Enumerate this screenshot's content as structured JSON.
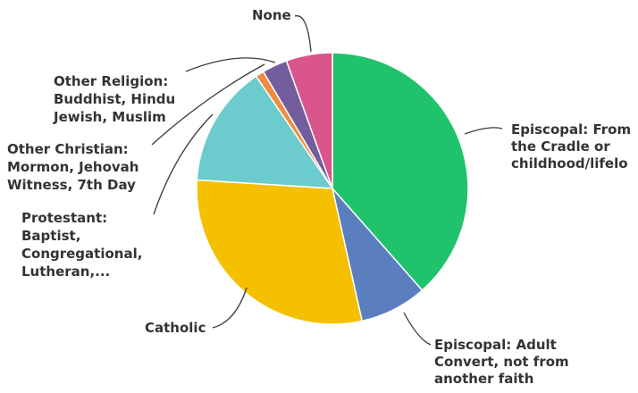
{
  "chart_data": {
    "type": "pie",
    "title": "",
    "slices": [
      {
        "label": [
          "Episcopal: From",
          "the Cradle or",
          "childhood/lifelo"
        ],
        "value": 38.5,
        "color": "#20c26c"
      },
      {
        "label": [
          "Episcopal: Adult",
          "Convert, not from",
          "another faith"
        ],
        "value": 8.0,
        "color": "#5b7fbe"
      },
      {
        "label": [
          "Catholic"
        ],
        "value": 29.5,
        "color": "#f5c000"
      },
      {
        "label": [
          "Protestant:",
          "Baptist,",
          "Congregational,",
          "Lutheran,..."
        ],
        "value": 14.5,
        "color": "#6ccbcc"
      },
      {
        "label": [
          "Other Christian:",
          "Mormon, Jehovah",
          "Witness, 7th Day"
        ],
        "value": 1.0,
        "color": "#f08a3c"
      },
      {
        "label": [
          "Other Religion:",
          "Buddhist, Hindu",
          "Jewish, Muslim"
        ],
        "value": 3.0,
        "color": "#745d9c"
      },
      {
        "label": [
          "None"
        ],
        "value": 5.5,
        "color": "#d9558c"
      }
    ]
  }
}
